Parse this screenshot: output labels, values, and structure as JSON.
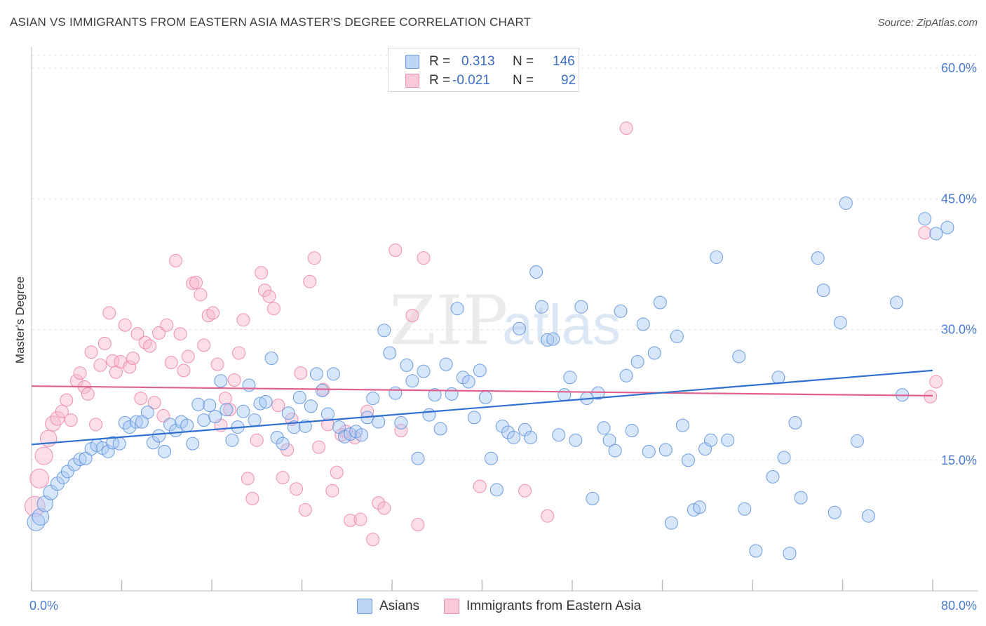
{
  "title": "ASIAN VS IMMIGRANTS FROM EASTERN ASIA MASTER'S DEGREE CORRELATION CHART",
  "source": "Source: ZipAtlas.com",
  "watermark": {
    "zip": "ZIP",
    "atlas": "atlas"
  },
  "legend_top": {
    "rows": [
      {
        "r_label": "R =",
        "r_value": "0.313",
        "n_label": "N =",
        "n_value": "146",
        "color": "#a8c8f0"
      },
      {
        "r_label": "R =",
        "r_value": "-0.021",
        "n_label": "N =",
        "n_value": "92",
        "color": "#f5b8cc"
      }
    ]
  },
  "legend_bottom": [
    "Asians",
    "Immigrants from Eastern Asia"
  ],
  "chart_data": {
    "type": "scatter",
    "title": "ASIAN VS IMMIGRANTS FROM EASTERN ASIA MASTER'S DEGREE CORRELATION CHART",
    "xlabel": "",
    "ylabel": "Master's Degree",
    "xlim": [
      0,
      80
    ],
    "ylim": [
      0,
      60
    ],
    "x_tick_labels": [
      "0.0%",
      "80.0%"
    ],
    "y_ticks": [
      15,
      30,
      45,
      60
    ],
    "y_tick_labels": [
      "15.0%",
      "30.0%",
      "45.0%",
      "60.0%"
    ],
    "grid": "horizontal dashed",
    "legend_placement": "top-center",
    "colors": {
      "asians": "#6a9be0",
      "immigrants": "#f08fb0",
      "asians_line": "#2f6fd0",
      "immigrants_line": "#e06090"
    },
    "series": [
      {
        "name": "Asians",
        "trend": {
          "x": [
            0,
            80
          ],
          "y": [
            16.8,
            25.3
          ]
        },
        "points": [
          [
            0.4,
            7.9
          ],
          [
            0.8,
            8.5
          ],
          [
            1.2,
            10.0
          ],
          [
            1.7,
            11.3
          ],
          [
            2.3,
            12.3
          ],
          [
            2.8,
            13.0
          ],
          [
            3.2,
            13.7
          ],
          [
            3.8,
            14.5
          ],
          [
            4.3,
            15.1
          ],
          [
            4.8,
            15.2
          ],
          [
            5.3,
            16.3
          ],
          [
            5.8,
            16.7
          ],
          [
            6.3,
            16.4
          ],
          [
            6.8,
            16.0
          ],
          [
            7.2,
            17.0
          ],
          [
            7.8,
            16.9
          ],
          [
            8.3,
            19.3
          ],
          [
            8.7,
            18.8
          ],
          [
            9.3,
            19.4
          ],
          [
            9.8,
            19.4
          ],
          [
            10.3,
            20.5
          ],
          [
            10.8,
            17.0
          ],
          [
            11.3,
            17.8
          ],
          [
            11.8,
            16.0
          ],
          [
            12.3,
            19.1
          ],
          [
            12.8,
            18.4
          ],
          [
            13.3,
            19.4
          ],
          [
            13.8,
            19.0
          ],
          [
            14.3,
            16.9
          ],
          [
            14.8,
            21.4
          ],
          [
            15.3,
            19.6
          ],
          [
            15.8,
            21.3
          ],
          [
            16.3,
            20.0
          ],
          [
            16.8,
            24.1
          ],
          [
            17.3,
            20.8
          ],
          [
            17.8,
            17.3
          ],
          [
            18.3,
            18.8
          ],
          [
            18.8,
            20.6
          ],
          [
            19.3,
            23.6
          ],
          [
            19.8,
            19.6
          ],
          [
            20.3,
            21.5
          ],
          [
            20.8,
            21.7
          ],
          [
            21.3,
            26.7
          ],
          [
            21.8,
            17.6
          ],
          [
            22.3,
            16.9
          ],
          [
            22.8,
            20.4
          ],
          [
            23.3,
            18.8
          ],
          [
            23.8,
            22.2
          ],
          [
            24.3,
            18.9
          ],
          [
            24.8,
            21.2
          ],
          [
            25.3,
            24.9
          ],
          [
            25.8,
            23.0
          ],
          [
            26.3,
            20.3
          ],
          [
            26.8,
            24.9
          ],
          [
            27.3,
            18.8
          ],
          [
            27.8,
            17.7
          ],
          [
            28.3,
            18.0
          ],
          [
            28.8,
            18.3
          ],
          [
            29.3,
            17.9
          ],
          [
            29.8,
            19.9
          ],
          [
            30.3,
            22.1
          ],
          [
            30.8,
            19.4
          ],
          [
            31.3,
            29.9
          ],
          [
            31.8,
            27.3
          ],
          [
            32.3,
            22.7
          ],
          [
            32.8,
            19.3
          ],
          [
            33.3,
            25.9
          ],
          [
            33.8,
            24.1
          ],
          [
            34.3,
            15.2
          ],
          [
            34.8,
            25.2
          ],
          [
            35.3,
            20.2
          ],
          [
            35.8,
            22.5
          ],
          [
            36.3,
            18.6
          ],
          [
            36.8,
            26.0
          ],
          [
            37.3,
            22.6
          ],
          [
            37.8,
            32.4
          ],
          [
            38.3,
            24.5
          ],
          [
            38.8,
            24.0
          ],
          [
            39.3,
            19.9
          ],
          [
            39.8,
            25.3
          ],
          [
            40.3,
            22.2
          ],
          [
            40.8,
            15.2
          ],
          [
            41.3,
            11.6
          ],
          [
            41.8,
            18.9
          ],
          [
            42.3,
            18.2
          ],
          [
            42.8,
            17.6
          ],
          [
            43.3,
            30.1
          ],
          [
            43.8,
            18.5
          ],
          [
            44.3,
            17.6
          ],
          [
            44.8,
            36.6
          ],
          [
            45.3,
            32.6
          ],
          [
            45.8,
            28.8
          ],
          [
            46.3,
            28.9
          ],
          [
            46.8,
            17.9
          ],
          [
            47.3,
            22.5
          ],
          [
            47.8,
            24.5
          ],
          [
            48.3,
            17.3
          ],
          [
            48.8,
            32.6
          ],
          [
            49.3,
            22.1
          ],
          [
            49.8,
            10.6
          ],
          [
            50.3,
            22.7
          ],
          [
            50.8,
            18.7
          ],
          [
            51.3,
            17.3
          ],
          [
            51.8,
            16.1
          ],
          [
            52.3,
            32.1
          ],
          [
            52.8,
            24.7
          ],
          [
            53.3,
            18.4
          ],
          [
            53.8,
            26.3
          ],
          [
            54.3,
            30.6
          ],
          [
            54.8,
            16.0
          ],
          [
            55.3,
            27.3
          ],
          [
            55.8,
            33.1
          ],
          [
            56.3,
            16.2
          ],
          [
            56.8,
            7.8
          ],
          [
            57.3,
            29.2
          ],
          [
            57.8,
            19.0
          ],
          [
            58.3,
            15.0
          ],
          [
            58.8,
            9.3
          ],
          [
            59.3,
            9.6
          ],
          [
            59.8,
            16.3
          ],
          [
            60.3,
            17.3
          ],
          [
            60.8,
            38.3
          ],
          [
            61.8,
            17.3
          ],
          [
            62.8,
            26.9
          ],
          [
            63.3,
            9.4
          ],
          [
            64.3,
            4.6
          ],
          [
            65.8,
            13.1
          ],
          [
            66.3,
            24.5
          ],
          [
            66.8,
            15.3
          ],
          [
            67.3,
            4.3
          ],
          [
            67.8,
            19.3
          ],
          [
            68.3,
            10.7
          ],
          [
            69.8,
            38.2
          ],
          [
            70.3,
            34.5
          ],
          [
            71.3,
            9.0
          ],
          [
            71.8,
            30.8
          ],
          [
            72.3,
            44.5
          ],
          [
            73.3,
            17.2
          ],
          [
            74.3,
            8.6
          ],
          [
            76.8,
            33.1
          ],
          [
            77.3,
            22.5
          ],
          [
            79.3,
            42.7
          ],
          [
            80.3,
            41.0
          ],
          [
            81.3,
            41.7
          ]
        ]
      },
      {
        "name": "Immigrants from Eastern Asia",
        "trend": {
          "x": [
            0,
            80
          ],
          "y": [
            23.5,
            22.4
          ]
        },
        "points": [
          [
            0.3,
            9.7
          ],
          [
            0.7,
            12.9
          ],
          [
            1.1,
            15.5
          ],
          [
            1.5,
            17.5
          ],
          [
            1.9,
            19.2
          ],
          [
            2.3,
            19.8
          ],
          [
            2.7,
            20.6
          ],
          [
            3.1,
            21.9
          ],
          [
            3.5,
            19.6
          ],
          [
            4.0,
            24.1
          ],
          [
            4.3,
            25.0
          ],
          [
            4.7,
            23.4
          ],
          [
            5.0,
            22.6
          ],
          [
            5.3,
            27.4
          ],
          [
            5.7,
            19.1
          ],
          [
            6.1,
            25.9
          ],
          [
            6.5,
            28.4
          ],
          [
            6.9,
            31.9
          ],
          [
            7.2,
            26.4
          ],
          [
            7.5,
            25.1
          ],
          [
            7.9,
            26.3
          ],
          [
            8.3,
            30.5
          ],
          [
            8.7,
            25.7
          ],
          [
            9.0,
            26.7
          ],
          [
            9.4,
            29.5
          ],
          [
            9.7,
            22.1
          ],
          [
            10.1,
            28.5
          ],
          [
            10.5,
            28.1
          ],
          [
            10.9,
            21.6
          ],
          [
            11.3,
            29.6
          ],
          [
            11.7,
            20.1
          ],
          [
            12.0,
            30.5
          ],
          [
            12.4,
            26.2
          ],
          [
            12.8,
            37.9
          ],
          [
            13.2,
            29.5
          ],
          [
            13.5,
            25.3
          ],
          [
            13.9,
            26.9
          ],
          [
            14.3,
            35.3
          ],
          [
            14.6,
            35.4
          ],
          [
            15.0,
            34.0
          ],
          [
            15.3,
            28.2
          ],
          [
            15.7,
            31.6
          ],
          [
            16.1,
            31.9
          ],
          [
            16.5,
            26.0
          ],
          [
            16.8,
            19.0
          ],
          [
            17.2,
            22.1
          ],
          [
            17.6,
            20.8
          ],
          [
            18.0,
            24.2
          ],
          [
            18.4,
            27.3
          ],
          [
            18.8,
            31.1
          ],
          [
            19.2,
            12.9
          ],
          [
            19.6,
            10.6
          ],
          [
            20.0,
            17.3
          ],
          [
            20.4,
            36.5
          ],
          [
            20.7,
            34.5
          ],
          [
            21.1,
            33.8
          ],
          [
            21.5,
            32.4
          ],
          [
            21.9,
            21.3
          ],
          [
            22.3,
            13.0
          ],
          [
            22.7,
            16.2
          ],
          [
            23.1,
            19.7
          ],
          [
            23.5,
            11.7
          ],
          [
            23.9,
            25.0
          ],
          [
            24.3,
            9.3
          ],
          [
            24.7,
            35.5
          ],
          [
            25.1,
            38.2
          ],
          [
            25.5,
            16.5
          ],
          [
            25.9,
            23.1
          ],
          [
            26.3,
            19.1
          ],
          [
            26.7,
            11.5
          ],
          [
            27.1,
            13.6
          ],
          [
            27.5,
            17.9
          ],
          [
            27.9,
            18.3
          ],
          [
            28.3,
            8.1
          ],
          [
            28.7,
            17.6
          ],
          [
            29.2,
            8.2
          ],
          [
            29.8,
            20.6
          ],
          [
            30.3,
            5.9
          ],
          [
            30.8,
            10.1
          ],
          [
            31.3,
            9.5
          ],
          [
            32.3,
            39.1
          ],
          [
            32.8,
            18.4
          ],
          [
            33.8,
            31.6
          ],
          [
            34.3,
            7.6
          ],
          [
            34.8,
            38.2
          ],
          [
            39.8,
            12.0
          ],
          [
            43.8,
            11.5
          ],
          [
            45.8,
            8.6
          ],
          [
            52.8,
            53.1
          ],
          [
            79.3,
            41.1
          ],
          [
            79.8,
            22.3
          ],
          [
            80.3,
            24.0
          ]
        ]
      }
    ]
  }
}
